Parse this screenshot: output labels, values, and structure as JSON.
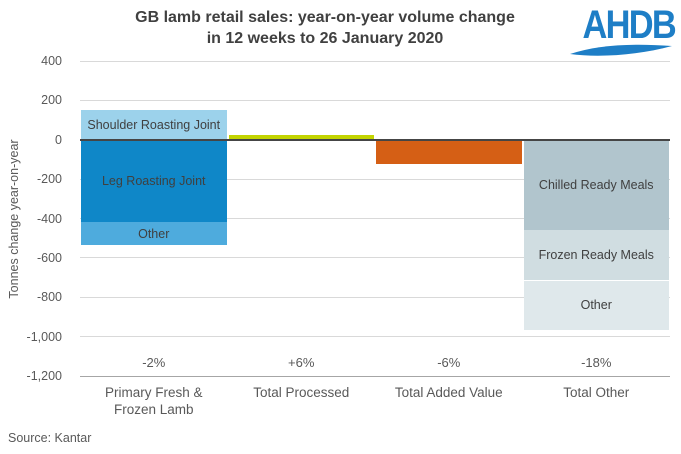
{
  "title": {
    "line1": "GB lamb retail sales: year-on-year volume change",
    "line2": "in 12 weeks to 26 January 2020"
  },
  "logo": {
    "text": "AHDB"
  },
  "source_label": "Source: Kantar",
  "colors": {
    "logo_blue": "#1e7ec6",
    "gridline": "#d9d9d9",
    "zero_line": "#454545",
    "axis_line": "#a6a6a6",
    "axis_text": "#595959",
    "bar_label_text": "#404040",
    "title_text": "#404040"
  },
  "chart_data": {
    "type": "bar",
    "stacked": true,
    "title": "GB lamb retail sales: year-on-year volume change in 12 weeks to 26 January 2020",
    "xlabel": "",
    "ylabel": "Tonnes change year-on-year",
    "ylim": [
      -1200,
      400
    ],
    "grid": true,
    "legend": "none (labels inside segments)",
    "yticks": [
      {
        "value": 400,
        "label": "400"
      },
      {
        "value": 200,
        "label": "200"
      },
      {
        "value": 0,
        "label": "0"
      },
      {
        "value": -200,
        "label": "-200"
      },
      {
        "value": -400,
        "label": "-400"
      },
      {
        "value": -600,
        "label": "-600"
      },
      {
        "value": -800,
        "label": "-800"
      },
      {
        "value": -1000,
        "label": "-1,000"
      },
      {
        "value": -1200,
        "label": "-1,200"
      }
    ],
    "categories": [
      "Primary Fresh &\nFrozen Lamb",
      "Total Processed",
      "Total Added Value",
      "Total Other"
    ],
    "bars": [
      {
        "category": "Primary Fresh &\nFrozen Lamb",
        "pct_label": "-2%",
        "segments": [
          {
            "label": "Shoulder Roasting Joint",
            "value": 150,
            "color": "#9cd2eb"
          },
          {
            "label": "Leg Roasting Joint",
            "value": -420,
            "color": "#0f87c8"
          },
          {
            "label": "Other",
            "value": -115,
            "color": "#4eabdd"
          }
        ]
      },
      {
        "category": "Total Processed",
        "pct_label": "+6%",
        "segments": [
          {
            "label": "",
            "value": 25,
            "color": "#c3d400"
          }
        ]
      },
      {
        "category": "Total Added Value",
        "pct_label": "-6%",
        "segments": [
          {
            "label": "",
            "value": -125,
            "color": "#d55f15"
          }
        ]
      },
      {
        "category": "Total Other",
        "pct_label": "-18%",
        "segments": [
          {
            "label": "Chilled Ready Meals",
            "value": -460,
            "color": "#b1c5cd"
          },
          {
            "label": "Frozen Ready Meals",
            "value": -255,
            "color": "#d0dde1"
          },
          {
            "label": "Other",
            "value": -250,
            "color": "#dfe8eb"
          }
        ]
      }
    ]
  }
}
